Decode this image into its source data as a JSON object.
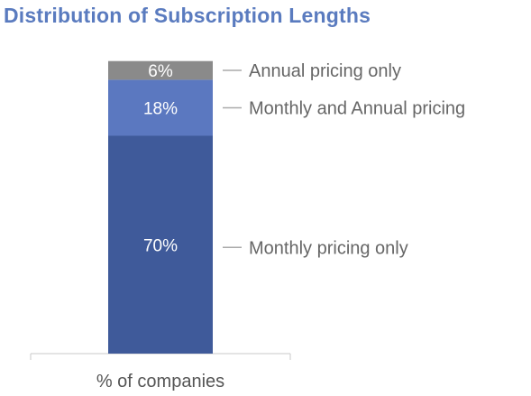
{
  "chart_data": {
    "type": "bar",
    "stacked": true,
    "title": "Distribution of Subscription Lengths",
    "categories": [
      "% of companies"
    ],
    "series": [
      {
        "name": "Monthly pricing only",
        "values": [
          70
        ],
        "label": "70%",
        "color": "#3f5a9a"
      },
      {
        "name": "Monthly and Annual pricing",
        "values": [
          18
        ],
        "label": "18%",
        "color": "#5b78c0"
      },
      {
        "name": "Annual pricing only",
        "values": [
          6
        ],
        "label": "6%",
        "color": "#8a8a8a"
      }
    ],
    "xlabel": "",
    "ylabel": "",
    "grid": false,
    "legend": "right-inline"
  }
}
